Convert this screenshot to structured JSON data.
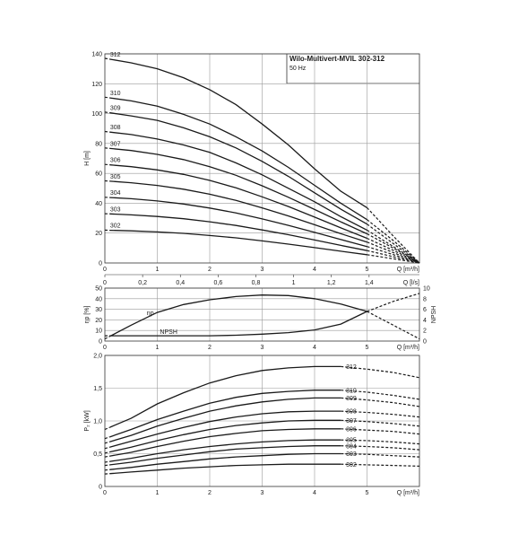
{
  "title": "Wilo-Multivert-MVIL 302-312",
  "subtitle": "50 Hz",
  "chart_data": [
    {
      "type": "line",
      "id": "head",
      "ylabel": "H [m]",
      "xlabel": "Q [m³/h]",
      "x2label": "Q [l/s]",
      "xlim": [
        0,
        6
      ],
      "ylim": [
        0,
        140
      ],
      "xticks": [
        0,
        1,
        2,
        3,
        4,
        5
      ],
      "x2ticks": [
        "0",
        "0,2",
        "0,4",
        "0,6",
        "0,8",
        "1",
        "1,2",
        "1,4"
      ],
      "x2tick_values": [
        0,
        0.2,
        0.4,
        0.6,
        0.8,
        1.0,
        1.2,
        1.4
      ],
      "yticks": [
        0,
        20,
        40,
        60,
        80,
        100,
        120,
        140
      ],
      "grid": true,
      "series": [
        {
          "name": "312",
          "x": [
            0,
            0.5,
            1,
            1.5,
            2,
            2.5,
            3,
            3.5,
            4,
            4.5,
            5,
            5.5,
            6
          ],
          "y": [
            137,
            134,
            130,
            124,
            116,
            106,
            93,
            79,
            63,
            48,
            37,
            18,
            0
          ]
        },
        {
          "name": "310",
          "x": [
            0,
            0.5,
            1,
            1.5,
            2,
            2.5,
            3,
            3.5,
            4,
            4.5,
            5,
            5.5,
            6
          ],
          "y": [
            111,
            108.5,
            105,
            99.5,
            93,
            84.5,
            75,
            64,
            52,
            40,
            29,
            15,
            0
          ]
        },
        {
          "name": "309",
          "x": [
            0,
            0.5,
            1,
            1.5,
            2,
            2.5,
            3,
            3.5,
            4,
            4.5,
            5,
            5.5,
            6
          ],
          "y": [
            101,
            98.5,
            95.5,
            90.5,
            84.5,
            77,
            68,
            58,
            47,
            36,
            26,
            13,
            0
          ]
        },
        {
          "name": "308",
          "x": [
            0,
            0.5,
            1,
            1.5,
            2,
            2.5,
            3,
            3.5,
            4,
            4.5,
            5,
            5.5,
            6
          ],
          "y": [
            88,
            86,
            83,
            79,
            74,
            67,
            59,
            50,
            41,
            31,
            22,
            11,
            0
          ]
        },
        {
          "name": "307",
          "x": [
            0,
            0.5,
            1,
            1.5,
            2,
            2.5,
            3,
            3.5,
            4,
            4.5,
            5,
            5.5,
            6
          ],
          "y": [
            77,
            75.3,
            72.7,
            69.2,
            64.5,
            58.7,
            51.7,
            44,
            35.8,
            27.5,
            19.5,
            10,
            0
          ]
        },
        {
          "name": "306",
          "x": [
            0,
            0.5,
            1,
            1.5,
            2,
            2.5,
            3,
            3.5,
            4,
            4.5,
            5,
            5.5,
            6
          ],
          "y": [
            66,
            64.5,
            62.3,
            59.3,
            55.3,
            50.3,
            44.3,
            37.8,
            30.7,
            23.5,
            16.5,
            8.5,
            0
          ]
        },
        {
          "name": "305",
          "x": [
            0,
            0.5,
            1,
            1.5,
            2,
            2.5,
            3,
            3.5,
            4,
            4.5,
            5,
            5.5,
            6
          ],
          "y": [
            55,
            53.7,
            51.9,
            49.4,
            46,
            41.9,
            36.9,
            31.5,
            25.6,
            19.6,
            14,
            7,
            0
          ]
        },
        {
          "name": "304",
          "x": [
            0,
            0.5,
            1,
            1.5,
            2,
            2.5,
            3,
            3.5,
            4,
            4.5,
            5,
            5.5,
            6
          ],
          "y": [
            44,
            43,
            41.5,
            39.5,
            36.8,
            33.5,
            29.5,
            25.2,
            20.5,
            15.7,
            11,
            5.6,
            0
          ]
        },
        {
          "name": "303",
          "x": [
            0,
            0.5,
            1,
            1.5,
            2,
            2.5,
            3,
            3.5,
            4,
            4.5,
            5,
            5.5,
            6
          ],
          "y": [
            33,
            32.2,
            31.1,
            29.6,
            27.6,
            25.1,
            22.1,
            18.9,
            15.4,
            11.8,
            8.3,
            4.2,
            0
          ]
        },
        {
          "name": "302",
          "x": [
            0,
            0.5,
            1,
            1.5,
            2,
            2.5,
            3,
            3.5,
            4,
            4.5,
            5,
            5.5,
            6
          ],
          "y": [
            22,
            21.5,
            20.8,
            19.8,
            18.4,
            16.8,
            14.8,
            12.6,
            10.3,
            7.9,
            5.5,
            2.8,
            0
          ]
        }
      ],
      "solid_range": [
        0.1,
        5.0
      ]
    },
    {
      "type": "line",
      "id": "efficiency",
      "ylabel": "ηp [%]",
      "y2label": "NPSH",
      "xlabel": "Q [m³/h]",
      "xlim": [
        0,
        6
      ],
      "ylim": [
        0,
        50
      ],
      "y2lim": [
        0,
        10
      ],
      "xticks": [
        0,
        1,
        2,
        3,
        4,
        5
      ],
      "yticks": [
        0,
        10,
        20,
        30,
        40,
        50
      ],
      "y2ticks": [
        0,
        2,
        4,
        6,
        8,
        10
      ],
      "grid": true,
      "series": [
        {
          "name": "ηp",
          "axis": "left",
          "x": [
            0,
            0.5,
            1,
            1.5,
            2,
            2.5,
            3,
            3.5,
            4,
            4.5,
            5,
            5.5,
            6
          ],
          "y": [
            2,
            15,
            27,
            34.5,
            39,
            42,
            43.5,
            43,
            40,
            35,
            28,
            15,
            2
          ]
        },
        {
          "name": "NPSH",
          "axis": "right",
          "x": [
            0,
            0.5,
            1,
            1.5,
            2,
            2.5,
            3,
            3.5,
            4,
            4.5,
            5,
            5.5,
            6
          ],
          "y": [
            1,
            1,
            1,
            1,
            1,
            1.1,
            1.3,
            1.6,
            2.1,
            3.2,
            5.6,
            7.5,
            9
          ]
        }
      ],
      "solid_range": [
        0.1,
        5.0
      ]
    },
    {
      "type": "line",
      "id": "power",
      "ylabel": "P₂ [kW]",
      "xlabel": "Q [m³/h]",
      "xlim": [
        0,
        6
      ],
      "ylim": [
        0,
        2.0
      ],
      "xticks": [
        0,
        1,
        2,
        3,
        4,
        5
      ],
      "yticks": [
        0,
        0.5,
        1.0,
        1.5,
        2.0
      ],
      "ytick_labels": [
        "0",
        "0,5",
        "1,0",
        "1,5",
        "2,0"
      ],
      "grid": true,
      "series": [
        {
          "name": "312",
          "x": [
            0,
            0.5,
            1,
            1.5,
            2,
            2.5,
            3,
            3.5,
            4,
            4.5,
            5,
            5.5,
            6
          ],
          "y": [
            0.87,
            1.04,
            1.26,
            1.43,
            1.58,
            1.69,
            1.77,
            1.81,
            1.83,
            1.83,
            1.79,
            1.74,
            1.66
          ]
        },
        {
          "name": "310",
          "x": [
            0,
            0.5,
            1,
            1.5,
            2,
            2.5,
            3,
            3.5,
            4,
            4.5,
            5,
            5.5,
            6
          ],
          "y": [
            0.73,
            0.87,
            1.02,
            1.15,
            1.27,
            1.36,
            1.42,
            1.45,
            1.47,
            1.47,
            1.44,
            1.39,
            1.33
          ]
        },
        {
          "name": "309",
          "x": [
            0,
            0.5,
            1,
            1.5,
            2,
            2.5,
            3,
            3.5,
            4,
            4.5,
            5,
            5.5,
            6
          ],
          "y": [
            0.66,
            0.78,
            0.92,
            1.04,
            1.15,
            1.23,
            1.29,
            1.33,
            1.35,
            1.35,
            1.32,
            1.28,
            1.22
          ]
        },
        {
          "name": "308",
          "x": [
            0,
            0.5,
            1,
            1.5,
            2,
            2.5,
            3,
            3.5,
            4,
            4.5,
            5,
            5.5,
            6
          ],
          "y": [
            0.58,
            0.69,
            0.8,
            0.9,
            0.99,
            1.06,
            1.11,
            1.14,
            1.15,
            1.15,
            1.13,
            1.1,
            1.06
          ]
        },
        {
          "name": "307",
          "x": [
            0,
            0.5,
            1,
            1.5,
            2,
            2.5,
            3,
            3.5,
            4,
            4.5,
            5,
            5.5,
            6
          ],
          "y": [
            0.51,
            0.6,
            0.7,
            0.79,
            0.87,
            0.93,
            0.97,
            1.0,
            1.01,
            1.01,
            0.99,
            0.96,
            0.92
          ]
        },
        {
          "name": "306",
          "x": [
            0,
            0.5,
            1,
            1.5,
            2,
            2.5,
            3,
            3.5,
            4,
            4.5,
            5,
            5.5,
            6
          ],
          "y": [
            0.45,
            0.52,
            0.61,
            0.69,
            0.76,
            0.81,
            0.85,
            0.87,
            0.88,
            0.88,
            0.86,
            0.84,
            0.8
          ]
        },
        {
          "name": "305",
          "x": [
            0,
            0.5,
            1,
            1.5,
            2,
            2.5,
            3,
            3.5,
            4,
            4.5,
            5,
            5.5,
            6
          ],
          "y": [
            0.37,
            0.43,
            0.5,
            0.56,
            0.61,
            0.65,
            0.68,
            0.7,
            0.71,
            0.71,
            0.7,
            0.68,
            0.65
          ]
        },
        {
          "name": "304",
          "x": [
            0,
            0.5,
            1,
            1.5,
            2,
            2.5,
            3,
            3.5,
            4,
            4.5,
            5,
            5.5,
            6
          ],
          "y": [
            0.32,
            0.37,
            0.43,
            0.48,
            0.53,
            0.57,
            0.59,
            0.61,
            0.62,
            0.62,
            0.61,
            0.59,
            0.56
          ]
        },
        {
          "name": "303",
          "x": [
            0,
            0.5,
            1,
            1.5,
            2,
            2.5,
            3,
            3.5,
            4,
            4.5,
            5,
            5.5,
            6
          ],
          "y": [
            0.25,
            0.29,
            0.34,
            0.38,
            0.42,
            0.45,
            0.47,
            0.49,
            0.5,
            0.5,
            0.49,
            0.47,
            0.45
          ]
        },
        {
          "name": "302",
          "x": [
            0,
            0.5,
            1,
            1.5,
            2,
            2.5,
            3,
            3.5,
            4,
            4.5,
            5,
            5.5,
            6
          ],
          "y": [
            0.19,
            0.22,
            0.25,
            0.28,
            0.3,
            0.32,
            0.33,
            0.34,
            0.34,
            0.34,
            0.33,
            0.32,
            0.31
          ]
        }
      ],
      "solid_range": [
        0.1,
        4.5
      ]
    }
  ]
}
